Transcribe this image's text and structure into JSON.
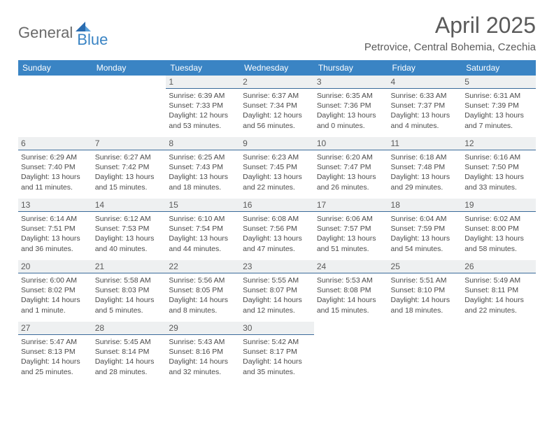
{
  "logo": {
    "part1": "General",
    "part2": "Blue"
  },
  "title": "April 2025",
  "location": "Petrovice, Central Bohemia, Czechia",
  "colors": {
    "header_bg": "#3a84c4",
    "header_text": "#ffffff",
    "daybar_bg": "#eef0f1",
    "daybar_border": "#3a6a9a",
    "text": "#4a4a4a",
    "logo_gray": "#6a6a6a",
    "logo_blue": "#3a84c4"
  },
  "weekdays": [
    "Sunday",
    "Monday",
    "Tuesday",
    "Wednesday",
    "Thursday",
    "Friday",
    "Saturday"
  ],
  "weeks": [
    [
      null,
      null,
      {
        "n": "1",
        "sunrise": "6:39 AM",
        "sunset": "7:33 PM",
        "daylight": "12 hours and 53 minutes."
      },
      {
        "n": "2",
        "sunrise": "6:37 AM",
        "sunset": "7:34 PM",
        "daylight": "12 hours and 56 minutes."
      },
      {
        "n": "3",
        "sunrise": "6:35 AM",
        "sunset": "7:36 PM",
        "daylight": "13 hours and 0 minutes."
      },
      {
        "n": "4",
        "sunrise": "6:33 AM",
        "sunset": "7:37 PM",
        "daylight": "13 hours and 4 minutes."
      },
      {
        "n": "5",
        "sunrise": "6:31 AM",
        "sunset": "7:39 PM",
        "daylight": "13 hours and 7 minutes."
      }
    ],
    [
      {
        "n": "6",
        "sunrise": "6:29 AM",
        "sunset": "7:40 PM",
        "daylight": "13 hours and 11 minutes."
      },
      {
        "n": "7",
        "sunrise": "6:27 AM",
        "sunset": "7:42 PM",
        "daylight": "13 hours and 15 minutes."
      },
      {
        "n": "8",
        "sunrise": "6:25 AM",
        "sunset": "7:43 PM",
        "daylight": "13 hours and 18 minutes."
      },
      {
        "n": "9",
        "sunrise": "6:23 AM",
        "sunset": "7:45 PM",
        "daylight": "13 hours and 22 minutes."
      },
      {
        "n": "10",
        "sunrise": "6:20 AM",
        "sunset": "7:47 PM",
        "daylight": "13 hours and 26 minutes."
      },
      {
        "n": "11",
        "sunrise": "6:18 AM",
        "sunset": "7:48 PM",
        "daylight": "13 hours and 29 minutes."
      },
      {
        "n": "12",
        "sunrise": "6:16 AM",
        "sunset": "7:50 PM",
        "daylight": "13 hours and 33 minutes."
      }
    ],
    [
      {
        "n": "13",
        "sunrise": "6:14 AM",
        "sunset": "7:51 PM",
        "daylight": "13 hours and 36 minutes."
      },
      {
        "n": "14",
        "sunrise": "6:12 AM",
        "sunset": "7:53 PM",
        "daylight": "13 hours and 40 minutes."
      },
      {
        "n": "15",
        "sunrise": "6:10 AM",
        "sunset": "7:54 PM",
        "daylight": "13 hours and 44 minutes."
      },
      {
        "n": "16",
        "sunrise": "6:08 AM",
        "sunset": "7:56 PM",
        "daylight": "13 hours and 47 minutes."
      },
      {
        "n": "17",
        "sunrise": "6:06 AM",
        "sunset": "7:57 PM",
        "daylight": "13 hours and 51 minutes."
      },
      {
        "n": "18",
        "sunrise": "6:04 AM",
        "sunset": "7:59 PM",
        "daylight": "13 hours and 54 minutes."
      },
      {
        "n": "19",
        "sunrise": "6:02 AM",
        "sunset": "8:00 PM",
        "daylight": "13 hours and 58 minutes."
      }
    ],
    [
      {
        "n": "20",
        "sunrise": "6:00 AM",
        "sunset": "8:02 PM",
        "daylight": "14 hours and 1 minute."
      },
      {
        "n": "21",
        "sunrise": "5:58 AM",
        "sunset": "8:03 PM",
        "daylight": "14 hours and 5 minutes."
      },
      {
        "n": "22",
        "sunrise": "5:56 AM",
        "sunset": "8:05 PM",
        "daylight": "14 hours and 8 minutes."
      },
      {
        "n": "23",
        "sunrise": "5:55 AM",
        "sunset": "8:07 PM",
        "daylight": "14 hours and 12 minutes."
      },
      {
        "n": "24",
        "sunrise": "5:53 AM",
        "sunset": "8:08 PM",
        "daylight": "14 hours and 15 minutes."
      },
      {
        "n": "25",
        "sunrise": "5:51 AM",
        "sunset": "8:10 PM",
        "daylight": "14 hours and 18 minutes."
      },
      {
        "n": "26",
        "sunrise": "5:49 AM",
        "sunset": "8:11 PM",
        "daylight": "14 hours and 22 minutes."
      }
    ],
    [
      {
        "n": "27",
        "sunrise": "5:47 AM",
        "sunset": "8:13 PM",
        "daylight": "14 hours and 25 minutes."
      },
      {
        "n": "28",
        "sunrise": "5:45 AM",
        "sunset": "8:14 PM",
        "daylight": "14 hours and 28 minutes."
      },
      {
        "n": "29",
        "sunrise": "5:43 AM",
        "sunset": "8:16 PM",
        "daylight": "14 hours and 32 minutes."
      },
      {
        "n": "30",
        "sunrise": "5:42 AM",
        "sunset": "8:17 PM",
        "daylight": "14 hours and 35 minutes."
      },
      null,
      null,
      null
    ]
  ],
  "labels": {
    "sunrise": "Sunrise:",
    "sunset": "Sunset:",
    "daylight": "Daylight:"
  }
}
